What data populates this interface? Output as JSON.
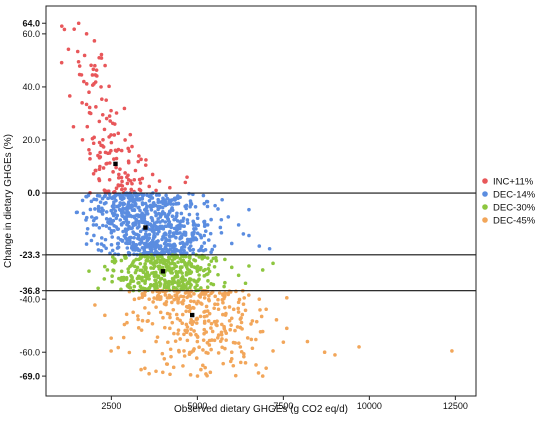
{
  "chart_data": {
    "type": "scatter",
    "title": "",
    "xlabel": "Observed dietary GHGEs (g CO2 eq/d)",
    "ylabel": "Change in dietary GHGEs (%)",
    "xlim": [
      600,
      13100
    ],
    "ylim": [
      -76.5,
      70.5
    ],
    "grid": false,
    "legend_position": "right",
    "x_ticks": [
      {
        "value": 2500,
        "label": "2500"
      },
      {
        "value": 5000,
        "label": "5000"
      },
      {
        "value": 7500,
        "label": "7500"
      },
      {
        "value": 10000,
        "label": "10000"
      },
      {
        "value": 12500,
        "label": "12500"
      }
    ],
    "y_ticks": [
      {
        "value": 64.0,
        "label": "64.0",
        "bold": true
      },
      {
        "value": 60.0,
        "label": "60.0",
        "bold": false
      },
      {
        "value": 40.0,
        "label": "40.0",
        "bold": false
      },
      {
        "value": 20.0,
        "label": "20.0",
        "bold": false
      },
      {
        "value": 0.0,
        "label": "0.0",
        "bold": true
      },
      {
        "value": -23.3,
        "label": "-23.3",
        "bold": true
      },
      {
        "value": -36.8,
        "label": "-36.8",
        "bold": true
      },
      {
        "value": -40.0,
        "label": "-40.0",
        "bold": false
      },
      {
        "value": -60.0,
        "label": "-60.0",
        "bold": false
      },
      {
        "value": -69.0,
        "label": "-69.0",
        "bold": true
      }
    ],
    "horizontal_lines": [
      0.0,
      -23.3,
      -36.8
    ],
    "series": [
      {
        "name": "INC+11%",
        "color": "#E8575A",
        "y_range": [
          0,
          64
        ],
        "centroid": {
          "x": 2620,
          "y": 11.0
        },
        "points": [
          [
            1550,
            64.0
          ],
          [
            1780,
            60.0
          ],
          [
            2020,
            48.0
          ],
          [
            1950,
            44.5
          ],
          [
            1700,
            42.0
          ],
          [
            2200,
            40.0
          ],
          [
            1850,
            38.0
          ],
          [
            2350,
            35.0
          ],
          [
            1650,
            34.0
          ],
          [
            2050,
            32.5
          ],
          [
            1900,
            30.0
          ],
          [
            2450,
            29.0
          ],
          [
            2150,
            27.0
          ],
          [
            2600,
            26.0
          ],
          [
            1800,
            25.0
          ],
          [
            2300,
            24.0
          ],
          [
            2700,
            22.5
          ],
          [
            2000,
            21.0
          ],
          [
            2900,
            20.0
          ],
          [
            2500,
            19.0
          ],
          [
            2200,
            18.0
          ],
          [
            3100,
            17.5
          ],
          [
            2800,
            16.0
          ],
          [
            2400,
            15.0
          ],
          [
            3300,
            14.0
          ],
          [
            2650,
            13.0
          ],
          [
            3000,
            12.0
          ],
          [
            2350,
            11.0
          ],
          [
            3500,
            10.5
          ],
          [
            2750,
            9.0
          ],
          [
            3200,
            8.5
          ],
          [
            2550,
            8.0
          ],
          [
            3700,
            7.0
          ],
          [
            2950,
            6.0
          ],
          [
            3400,
            5.5
          ],
          [
            2450,
            5.0
          ],
          [
            3900,
            4.5
          ],
          [
            3100,
            3.5
          ],
          [
            2700,
            3.0
          ],
          [
            3600,
            2.5
          ],
          [
            4200,
            2.0
          ],
          [
            2900,
            1.5
          ],
          [
            3350,
            1.0
          ],
          [
            3800,
            1.0
          ],
          [
            2600,
            0.5
          ],
          [
            4700,
            6.0
          ],
          [
            4650,
            4.0
          ],
          [
            3050,
            22.0
          ],
          [
            2250,
            29.5
          ],
          [
            1950,
            20.5
          ]
        ]
      },
      {
        "name": "DEC-14%",
        "color": "#5B8DE0",
        "y_range": [
          -23.3,
          0
        ],
        "centroid": {
          "x": 3490,
          "y": -13.0
        },
        "points": [
          [
            2100,
            -1.0
          ],
          [
            2400,
            -2.0
          ],
          [
            2800,
            -1.5
          ],
          [
            3200,
            -2.5
          ],
          [
            3600,
            -1.2
          ],
          [
            4000,
            -2.0
          ],
          [
            4400,
            -1.8
          ],
          [
            4800,
            -3.0
          ],
          [
            2300,
            -4.0
          ],
          [
            2700,
            -5.0
          ],
          [
            3100,
            -4.5
          ],
          [
            3500,
            -6.0
          ],
          [
            3900,
            -5.5
          ],
          [
            4300,
            -4.2
          ],
          [
            5200,
            -4.0
          ],
          [
            5600,
            -6.0
          ],
          [
            2200,
            -7.0
          ],
          [
            2600,
            -8.0
          ],
          [
            3000,
            -7.5
          ],
          [
            3400,
            -9.0
          ],
          [
            3800,
            -8.5
          ],
          [
            4200,
            -7.2
          ],
          [
            4600,
            -9.5
          ],
          [
            5000,
            -8.0
          ],
          [
            5400,
            -10.0
          ],
          [
            5900,
            -9.0
          ],
          [
            2400,
            -11.0
          ],
          [
            2800,
            -12.0
          ],
          [
            3300,
            -11.5
          ],
          [
            3700,
            -13.0
          ],
          [
            4100,
            -12.5
          ],
          [
            4500,
            -11.0
          ],
          [
            4900,
            -13.5
          ],
          [
            5300,
            -12.0
          ],
          [
            6200,
            -12.0
          ],
          [
            2500,
            -15.0
          ],
          [
            2900,
            -16.0
          ],
          [
            3200,
            -15.5
          ],
          [
            3600,
            -17.0
          ],
          [
            4000,
            -16.5
          ],
          [
            4400,
            -15.2
          ],
          [
            4800,
            -17.5
          ],
          [
            5200,
            -16.0
          ],
          [
            5700,
            -15.0
          ],
          [
            6500,
            -16.0
          ],
          [
            2700,
            -19.0
          ],
          [
            3100,
            -20.0
          ],
          [
            3500,
            -19.5
          ],
          [
            3900,
            -21.0
          ],
          [
            4300,
            -20.5
          ],
          [
            4700,
            -19.2
          ],
          [
            5100,
            -21.5
          ],
          [
            5500,
            -20.0
          ],
          [
            6000,
            -19.0
          ],
          [
            6800,
            -20.0
          ],
          [
            7100,
            -21.0
          ],
          [
            3000,
            -22.5
          ],
          [
            3800,
            -22.0
          ],
          [
            4600,
            -22.8
          ],
          [
            5400,
            -22.3
          ]
        ]
      },
      {
        "name": "DEC-30%",
        "color": "#8DC63F",
        "y_range": [
          -36.8,
          -23.3
        ],
        "centroid": {
          "x": 4000,
          "y": -29.5
        },
        "points": [
          [
            2900,
            -24.5
          ],
          [
            3300,
            -25.0
          ],
          [
            3700,
            -24.2
          ],
          [
            4100,
            -25.5
          ],
          [
            4500,
            -24.8
          ],
          [
            4900,
            -25.2
          ],
          [
            5300,
            -24.5
          ],
          [
            5800,
            -25.0
          ],
          [
            3100,
            -27.0
          ],
          [
            3500,
            -28.0
          ],
          [
            3900,
            -27.5
          ],
          [
            4300,
            -28.5
          ],
          [
            4700,
            -27.2
          ],
          [
            5100,
            -28.2
          ],
          [
            5500,
            -27.8
          ],
          [
            6000,
            -28.0
          ],
          [
            6500,
            -27.5
          ],
          [
            3200,
            -30.0
          ],
          [
            3600,
            -31.0
          ],
          [
            4000,
            -30.5
          ],
          [
            4400,
            -31.5
          ],
          [
            4800,
            -30.2
          ],
          [
            5200,
            -31.2
          ],
          [
            5600,
            -30.8
          ],
          [
            6200,
            -31.0
          ],
          [
            6900,
            -29.0
          ],
          [
            3400,
            -33.0
          ],
          [
            3800,
            -34.0
          ],
          [
            4200,
            -33.5
          ],
          [
            4600,
            -34.5
          ],
          [
            5000,
            -33.2
          ],
          [
            5400,
            -34.2
          ],
          [
            5800,
            -33.8
          ],
          [
            6400,
            -34.0
          ],
          [
            3600,
            -36.0
          ],
          [
            4100,
            -35.8
          ],
          [
            4700,
            -36.2
          ],
          [
            5300,
            -35.5
          ],
          [
            2800,
            -29.5
          ],
          [
            7200,
            -26.5
          ]
        ]
      },
      {
        "name": "DEC-45%",
        "color": "#F2A65A",
        "y_range": [
          -69,
          -36.8
        ],
        "centroid": {
          "x": 4850,
          "y": -46.0
        },
        "points": [
          [
            3400,
            -38.0
          ],
          [
            3900,
            -37.5
          ],
          [
            4400,
            -38.5
          ],
          [
            4900,
            -38.0
          ],
          [
            5400,
            -37.8
          ],
          [
            5900,
            -38.2
          ],
          [
            3600,
            -40.0
          ],
          [
            4100,
            -41.0
          ],
          [
            4600,
            -40.5
          ],
          [
            5100,
            -41.5
          ],
          [
            5600,
            -40.2
          ],
          [
            6200,
            -41.2
          ],
          [
            6800,
            -40.0
          ],
          [
            7600,
            -39.5
          ],
          [
            3800,
            -43.0
          ],
          [
            4300,
            -44.0
          ],
          [
            4800,
            -43.5
          ],
          [
            5300,
            -44.5
          ],
          [
            5800,
            -43.2
          ],
          [
            6400,
            -44.2
          ],
          [
            7000,
            -43.8
          ],
          [
            4000,
            -47.0
          ],
          [
            4500,
            -48.0
          ],
          [
            5000,
            -47.5
          ],
          [
            5500,
            -48.5
          ],
          [
            6000,
            -47.2
          ],
          [
            6600,
            -48.2
          ],
          [
            7300,
            -47.8
          ],
          [
            4200,
            -51.0
          ],
          [
            4700,
            -52.0
          ],
          [
            5200,
            -51.5
          ],
          [
            5700,
            -52.5
          ],
          [
            6300,
            -51.2
          ],
          [
            6900,
            -52.2
          ],
          [
            7600,
            -51.0
          ],
          [
            4500,
            -55.0
          ],
          [
            5000,
            -56.0
          ],
          [
            5500,
            -55.5
          ],
          [
            6100,
            -56.5
          ],
          [
            6700,
            -55.2
          ],
          [
            7500,
            -56.2
          ],
          [
            5400,
            -59.0
          ],
          [
            6000,
            -60.0
          ],
          [
            6600,
            -58.5
          ],
          [
            7200,
            -59.5
          ],
          [
            8200,
            -56.0
          ],
          [
            8700,
            -60.0
          ],
          [
            9700,
            -58.0
          ],
          [
            9000,
            -61.0
          ],
          [
            12400,
            -59.5
          ],
          [
            6400,
            -64.0
          ],
          [
            7000,
            -66.0
          ],
          [
            6900,
            -69.0
          ],
          [
            6000,
            -62.5
          ]
        ]
      }
    ]
  }
}
